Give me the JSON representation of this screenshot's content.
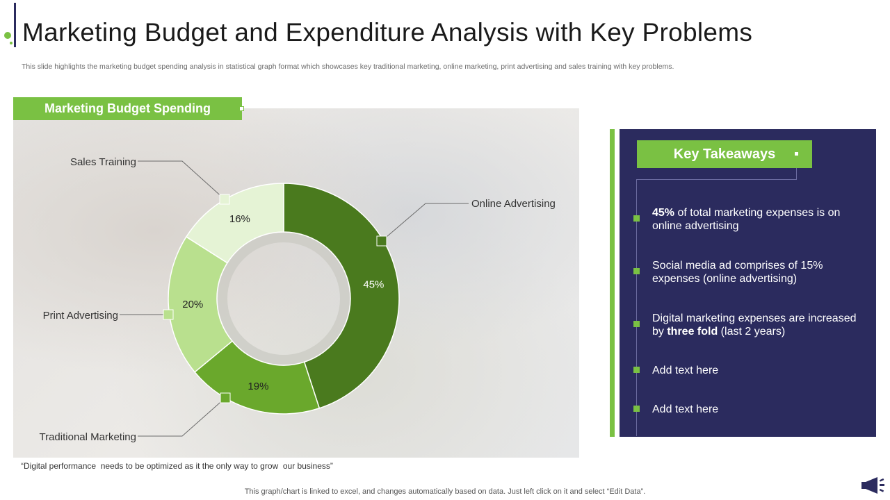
{
  "header": {
    "title": "Marketing Budget and Expenditure Analysis with Key Problems",
    "subtitle": "This slide highlights the marketing budget spending analysis in statistical graph format which showcases key traditional marketing, online marketing, print advertising and sales training with key problems."
  },
  "chart_section": {
    "heading": "Marketing Budget Spending"
  },
  "chart_data": {
    "type": "pie",
    "subtype": "donut",
    "title": "",
    "categories": [
      "Online Advertising",
      "Traditional Marketing",
      "Print Advertising",
      "Sales Training"
    ],
    "values": [
      45,
      19,
      20,
      16
    ],
    "value_labels": [
      "45%",
      "19%",
      "20%",
      "16%"
    ],
    "colors": [
      "#4a7a1e",
      "#6aa82c",
      "#b9e08e",
      "#e5f3d5"
    ],
    "legend": "callouts"
  },
  "quote": "“Digital performance  needs to be optimized as it the only way to grow  our business”",
  "takeaways": {
    "heading": "Key Takeaways",
    "items": [
      {
        "bold": "45%",
        "text": " of total marketing expenses is on online advertising",
        "bold_after": "",
        "tail": ""
      },
      {
        "bold": "",
        "text": "Social media ad comprises of 15% expenses (online advertising)",
        "bold_after": "",
        "tail": ""
      },
      {
        "bold": "",
        "text": "Digital marketing expenses are increased by ",
        "bold_after": "three fold",
        "tail": " (last 2 years)"
      },
      {
        "bold": "",
        "text": "Add text here",
        "bold_after": "",
        "tail": ""
      },
      {
        "bold": "",
        "text": "Add text here",
        "bold_after": "",
        "tail": ""
      }
    ]
  },
  "footer": {
    "note": "This graph/chart is linked to excel,  and changes automatically based on data. Just left click on it and select “Edit Data”.",
    "icon": "megaphone-icon"
  }
}
